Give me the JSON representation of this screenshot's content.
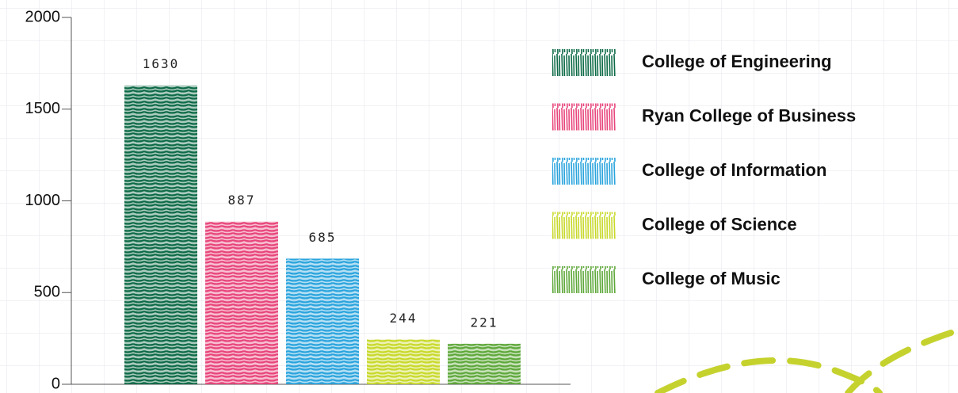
{
  "chart_data": {
    "type": "bar",
    "categories": [
      null
    ],
    "series": [
      {
        "name": "College of Engineering",
        "color": "#0e6b47",
        "values": [
          1630
        ]
      },
      {
        "name": "Ryan College of Business",
        "color": "#e8457a",
        "values": [
          887
        ]
      },
      {
        "name": "College of Information",
        "color": "#2aa4dd",
        "values": [
          685
        ]
      },
      {
        "name": "College of Science",
        "color": "#c8d92a",
        "values": [
          244
        ]
      },
      {
        "name": "College of Music",
        "color": "#5ea83a",
        "values": [
          221
        ]
      }
    ],
    "ylim": [
      0,
      2000
    ],
    "yticks": [
      0,
      500,
      1000,
      1500,
      2000
    ],
    "legend": "right"
  }
}
